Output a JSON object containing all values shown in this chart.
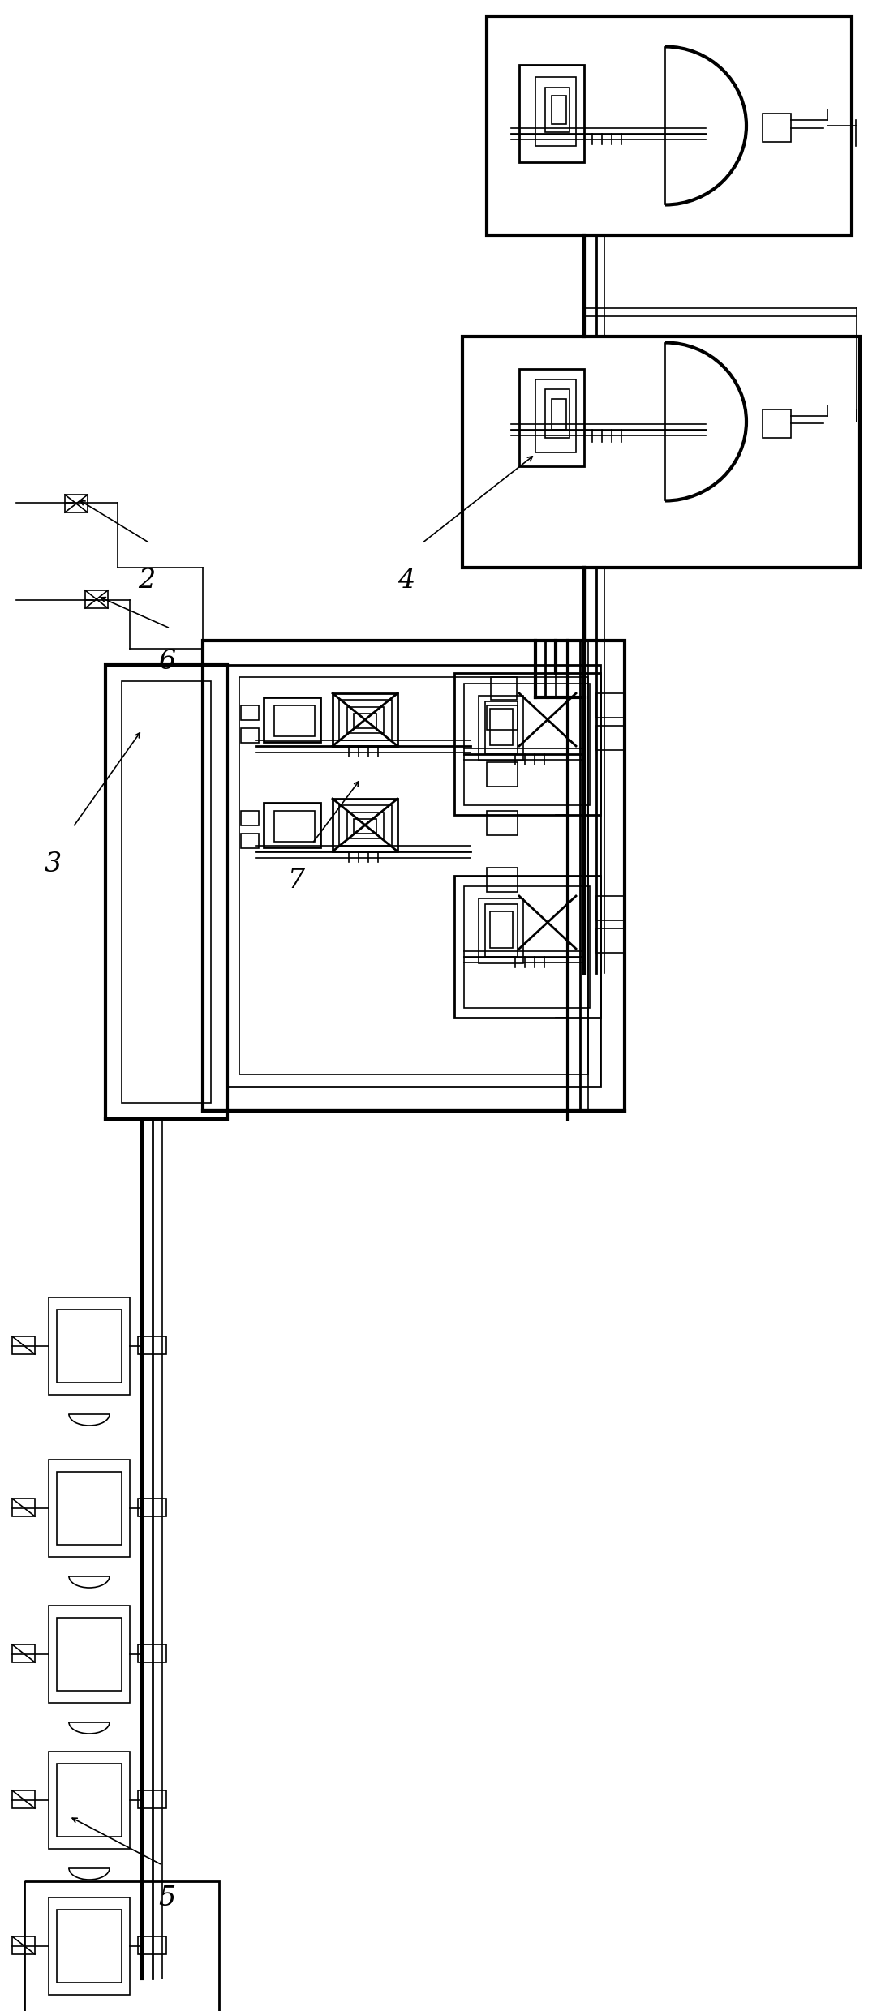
{
  "bg_color": "#ffffff",
  "line_color": "#000000",
  "figsize": [
    10.86,
    24.8
  ],
  "dpi": 100
}
